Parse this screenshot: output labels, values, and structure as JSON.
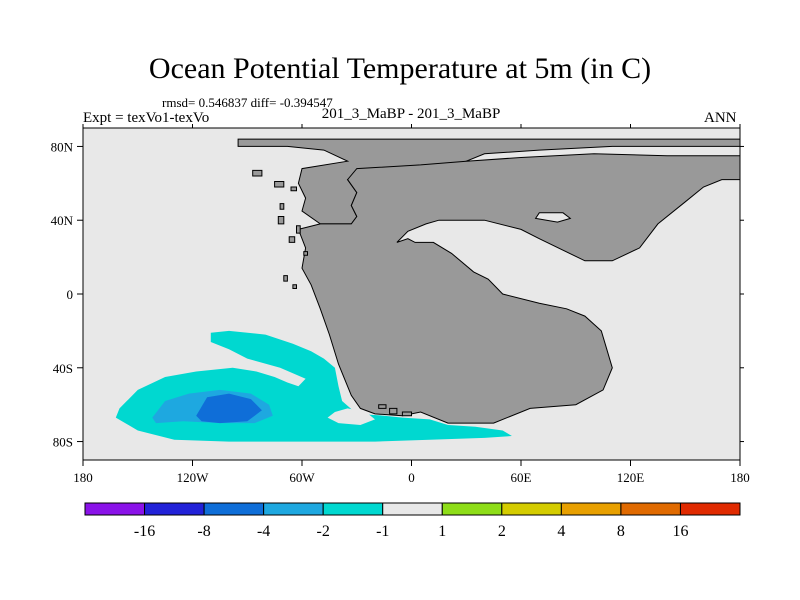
{
  "header": {
    "title": "Ocean Potential Temperature at 5m (in C)",
    "stats": "rmsd= 0.546837 diff= -0.394547",
    "left_label": "Expt = texVo1-texVo",
    "center_label": "201_3_MaBP - 201_3_MaBP",
    "right_label": "ANN"
  },
  "chart_data": {
    "type": "heatmap",
    "title": "Ocean Potential Temperature at 5m (in C)",
    "projection": "cylindrical equidistant",
    "x_range": [
      -180,
      180
    ],
    "y_range": [
      -90,
      90
    ],
    "x_ticks": [
      {
        "value": -180,
        "label": "180"
      },
      {
        "value": -120,
        "label": "120W"
      },
      {
        "value": -60,
        "label": "60W"
      },
      {
        "value": 0,
        "label": "0"
      },
      {
        "value": 60,
        "label": "60E"
      },
      {
        "value": 120,
        "label": "120E"
      },
      {
        "value": 180,
        "label": "180"
      }
    ],
    "y_ticks": [
      {
        "value": 80,
        "label": "80N"
      },
      {
        "value": 40,
        "label": "40N"
      },
      {
        "value": 0,
        "label": "0"
      },
      {
        "value": -40,
        "label": "40S"
      },
      {
        "value": -80,
        "label": "80S"
      }
    ],
    "colors": {
      "background_ocean": "#e8e8e8",
      "land": "#999999",
      "land_outline": "#000000"
    },
    "land_masses": [
      {
        "name": "supercontinent",
        "points": [
          [
            -50,
            38
          ],
          [
            -33,
            38
          ],
          [
            -30,
            42
          ],
          [
            -33,
            48
          ],
          [
            -30,
            55
          ],
          [
            -35,
            62
          ],
          [
            -25,
            65
          ],
          [
            -5,
            62
          ],
          [
            15,
            65
          ],
          [
            25,
            70
          ],
          [
            40,
            76
          ],
          [
            70,
            78
          ],
          [
            110,
            80
          ],
          [
            180,
            80
          ],
          [
            180,
            84
          ],
          [
            -95,
            84
          ],
          [
            -95,
            80
          ],
          [
            -68,
            80
          ],
          [
            -48,
            78
          ],
          [
            -35,
            72
          ],
          [
            -60,
            68
          ],
          [
            -62,
            60
          ],
          [
            -58,
            52
          ],
          [
            -60,
            45
          ]
        ]
      },
      {
        "name": "supercontinent-south",
        "points": [
          [
            -50,
            38
          ],
          [
            -62,
            35
          ],
          [
            -58,
            25
          ],
          [
            -60,
            14
          ],
          [
            -55,
            5
          ],
          [
            -50,
            -8
          ],
          [
            -45,
            -22
          ],
          [
            -40,
            -38
          ],
          [
            -33,
            -55
          ],
          [
            -28,
            -62
          ],
          [
            -20,
            -65
          ],
          [
            -5,
            -66
          ],
          [
            5,
            -64
          ],
          [
            20,
            -70
          ],
          [
            45,
            -70
          ],
          [
            65,
            -62
          ],
          [
            90,
            -60
          ],
          [
            105,
            -52
          ],
          [
            110,
            -40
          ],
          [
            107,
            -30
          ],
          [
            104,
            -20
          ],
          [
            95,
            -12
          ],
          [
            85,
            -8
          ],
          [
            70,
            -5
          ],
          [
            50,
            0
          ],
          [
            42,
            8
          ],
          [
            34,
            12
          ],
          [
            22,
            22
          ],
          [
            12,
            28
          ],
          [
            2,
            28
          ],
          [
            -2,
            30
          ],
          [
            -8,
            28
          ],
          [
            -2,
            34
          ],
          [
            8,
            38
          ],
          [
            15,
            40
          ],
          [
            40,
            40
          ],
          [
            60,
            35
          ],
          [
            70,
            30
          ],
          [
            95,
            18
          ],
          [
            110,
            18
          ],
          [
            125,
            25
          ],
          [
            135,
            38
          ],
          [
            150,
            50
          ],
          [
            160,
            58
          ],
          [
            170,
            62
          ],
          [
            180,
            62
          ],
          [
            180,
            75
          ],
          [
            140,
            75
          ],
          [
            100,
            76
          ],
          [
            60,
            74
          ],
          [
            30,
            72
          ],
          [
            5,
            70
          ],
          [
            -30,
            68
          ],
          [
            -35,
            62
          ],
          [
            -30,
            55
          ],
          [
            -33,
            48
          ],
          [
            -30,
            42
          ],
          [
            -33,
            38
          ]
        ]
      },
      {
        "name": "island-1",
        "points": [
          [
            -87,
            67
          ],
          [
            -82,
            67
          ],
          [
            -82,
            64
          ],
          [
            -87,
            64
          ]
        ]
      },
      {
        "name": "island-2",
        "points": [
          [
            -75,
            61
          ],
          [
            -70,
            61
          ],
          [
            -70,
            58
          ],
          [
            -75,
            58
          ]
        ]
      },
      {
        "name": "island-3",
        "points": [
          [
            -66,
            58
          ],
          [
            -63,
            58
          ],
          [
            -63,
            56
          ],
          [
            -66,
            56
          ]
        ]
      },
      {
        "name": "island-4",
        "points": [
          [
            -72,
            49
          ],
          [
            -70,
            49
          ],
          [
            -70,
            46
          ],
          [
            -72,
            46
          ]
        ]
      },
      {
        "name": "island-5",
        "points": [
          [
            -73,
            42
          ],
          [
            -70,
            42
          ],
          [
            -70,
            38
          ],
          [
            -73,
            38
          ]
        ]
      },
      {
        "name": "island-6",
        "points": [
          [
            -63,
            37
          ],
          [
            -61,
            37
          ],
          [
            -61,
            33
          ],
          [
            -63,
            33
          ]
        ]
      },
      {
        "name": "island-7",
        "points": [
          [
            -67,
            31
          ],
          [
            -64,
            31
          ],
          [
            -64,
            28
          ],
          [
            -67,
            28
          ]
        ]
      },
      {
        "name": "island-8",
        "points": [
          [
            -59,
            23
          ],
          [
            -57,
            23
          ],
          [
            -57,
            21
          ],
          [
            -59,
            21
          ]
        ]
      },
      {
        "name": "island-9",
        "points": [
          [
            -70,
            10
          ],
          [
            -68,
            10
          ],
          [
            -68,
            7
          ],
          [
            -70,
            7
          ]
        ]
      },
      {
        "name": "island-10",
        "points": [
          [
            -65,
            5
          ],
          [
            -63,
            5
          ],
          [
            -63,
            3
          ],
          [
            -65,
            3
          ]
        ]
      },
      {
        "name": "island-11",
        "points": [
          [
            -18,
            -60
          ],
          [
            -14,
            -60
          ],
          [
            -14,
            -62
          ],
          [
            -18,
            -62
          ]
        ]
      },
      {
        "name": "island-12",
        "points": [
          [
            -12,
            -62
          ],
          [
            -8,
            -62
          ],
          [
            -8,
            -65
          ],
          [
            -12,
            -65
          ]
        ]
      },
      {
        "name": "island-13",
        "points": [
          [
            -5,
            -64
          ],
          [
            0,
            -64
          ],
          [
            0,
            -66
          ],
          [
            -5,
            -66
          ]
        ]
      }
    ],
    "lakes": [
      {
        "name": "inland-sea",
        "points": [
          [
            70,
            44
          ],
          [
            83,
            44
          ],
          [
            87,
            41
          ],
          [
            80,
            39
          ],
          [
            68,
            41
          ]
        ]
      }
    ],
    "anomaly_regions": [
      {
        "name": "cool-band-outer",
        "level": "-2 to -1",
        "color": "#00d8d0",
        "points": [
          [
            -160,
            -62
          ],
          [
            -150,
            -52
          ],
          [
            -135,
            -45
          ],
          [
            -118,
            -42
          ],
          [
            -98,
            -40
          ],
          [
            -85,
            -42
          ],
          [
            -75,
            -45
          ],
          [
            -68,
            -48
          ],
          [
            -62,
            -50
          ],
          [
            -58,
            -46
          ],
          [
            -72,
            -40
          ],
          [
            -90,
            -35
          ],
          [
            -100,
            -30
          ],
          [
            -110,
            -26
          ],
          [
            -110,
            -21
          ],
          [
            -100,
            -20
          ],
          [
            -80,
            -22
          ],
          [
            -65,
            -27
          ],
          [
            -55,
            -31
          ],
          [
            -48,
            -35
          ],
          [
            -42,
            -40
          ],
          [
            -40,
            -50
          ],
          [
            -38,
            -58
          ],
          [
            -30,
            -65
          ],
          [
            -15,
            -66
          ],
          [
            -5,
            -67
          ],
          [
            10,
            -68
          ],
          [
            20,
            -71
          ],
          [
            35,
            -72
          ],
          [
            50,
            -74
          ],
          [
            55,
            -77
          ],
          [
            40,
            -78
          ],
          [
            10,
            -79
          ],
          [
            -20,
            -80
          ],
          [
            -60,
            -80
          ],
          [
            -100,
            -80
          ],
          [
            -130,
            -79
          ],
          [
            -150,
            -74
          ],
          [
            -162,
            -67
          ]
        ]
      },
      {
        "name": "warm-pocket",
        "level": "-1 to 1",
        "color": "#e8e8e8",
        "points": [
          [
            -42,
            -64
          ],
          [
            -35,
            -62
          ],
          [
            -25,
            -64
          ],
          [
            -20,
            -68
          ],
          [
            -28,
            -71
          ],
          [
            -40,
            -70
          ],
          [
            -46,
            -67
          ]
        ]
      },
      {
        "name": "cold-core",
        "level": "-4 to -2",
        "color": "#1ea8e0",
        "points": [
          [
            -142,
            -67
          ],
          [
            -135,
            -58
          ],
          [
            -122,
            -54
          ],
          [
            -105,
            -52
          ],
          [
            -88,
            -54
          ],
          [
            -78,
            -60
          ],
          [
            -76,
            -66
          ],
          [
            -86,
            -70
          ],
          [
            -105,
            -70
          ],
          [
            -125,
            -69
          ],
          [
            -140,
            -70
          ]
        ]
      },
      {
        "name": "cold-core-inner",
        "level": "-8 to -4",
        "color": "#0f6ed8",
        "points": [
          [
            -118,
            -66
          ],
          [
            -112,
            -56
          ],
          [
            -100,
            -54
          ],
          [
            -88,
            -57
          ],
          [
            -82,
            -63
          ],
          [
            -90,
            -69
          ],
          [
            -105,
            -70
          ],
          [
            -115,
            -69
          ]
        ]
      }
    ],
    "colorbar": {
      "colors": [
        "#8a12e8",
        "#2222d8",
        "#0f6ed8",
        "#1ea8e0",
        "#00d8d0",
        "#e8e8e8",
        "#8edd18",
        "#d4cc00",
        "#e8a000",
        "#e06a00",
        "#e02a00"
      ],
      "labels": [
        "-16",
        "-8",
        "-4",
        "-2",
        "-1",
        "1",
        "2",
        "4",
        "8",
        "16"
      ]
    }
  }
}
